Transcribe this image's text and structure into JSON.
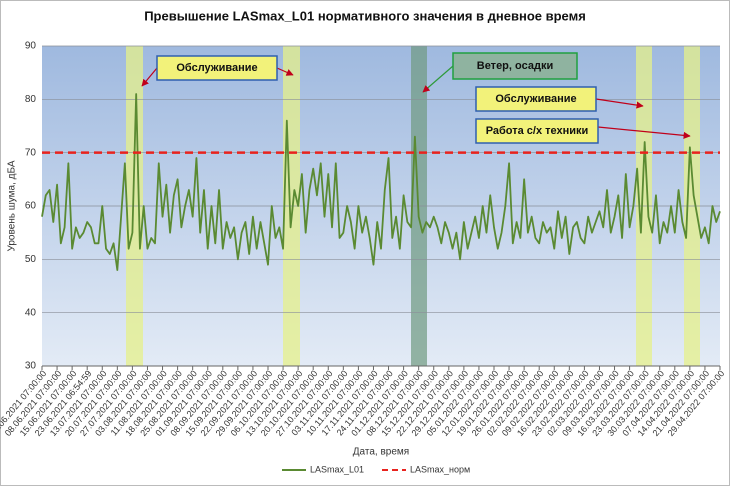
{
  "chart_data": {
    "type": "line",
    "title": "Превышение LASmax_L01 нормативного значения в дневное время",
    "x_label": "Дата, время",
    "y_label": "Уровень шума, дБА",
    "ylim": [
      30,
      90
    ],
    "yticks": [
      30,
      40,
      50,
      60,
      70,
      80,
      90
    ],
    "grid": true,
    "legend": "bottom",
    "categories": [
      "01.06.2021 07:00:00",
      null,
      null,
      null,
      "08.06.2021 07:00:00",
      null,
      null,
      null,
      "15.06.2021 07:00:00",
      null,
      null,
      null,
      "23.06.2021 06:54:59",
      null,
      null,
      null,
      "13.07.2021 07:00:00",
      null,
      null,
      null,
      "20.07.2021 07:00:00",
      null,
      null,
      null,
      "27.07.2021 07:00:00",
      null,
      null,
      null,
      "03.08.2021 07:00:00",
      null,
      null,
      null,
      "11.08.2021 07:00:00",
      null,
      null,
      null,
      "18.08.2021 07:00:00",
      null,
      null,
      null,
      "25.08.2021 07:00:00",
      null,
      null,
      null,
      "01.09.2021 07:00:00",
      null,
      null,
      null,
      "08.09.2021 07:00:00",
      null,
      null,
      null,
      "15.09.2021 07:00:00",
      null,
      null,
      null,
      "22.09.2021 07:00:00",
      null,
      null,
      null,
      "29.09.2021 07:00:00",
      null,
      null,
      null,
      "06.10.2021 07:00:00",
      null,
      null,
      null,
      "13.10.2021 07:00:00",
      null,
      null,
      null,
      "20.10.2021 07:00:00",
      null,
      null,
      null,
      "27.10.2021 07:00:00",
      null,
      null,
      null,
      "03.11.2021 07:00:00",
      null,
      null,
      null,
      "10.11.2021 07:00:00",
      null,
      null,
      null,
      "17.11.2021 07:00:00",
      null,
      null,
      null,
      "24.11.2021 07:00:00",
      null,
      null,
      null,
      "01.12.2021 07:00:00",
      null,
      null,
      null,
      "08.12.2021 07:00:00",
      null,
      null,
      null,
      "15.12.2021 07:00:00",
      null,
      null,
      null,
      "22.12.2021 07:00:00",
      null,
      null,
      null,
      "29.12.2021 07:00:00",
      null,
      null,
      null,
      "05.01.2022 07:00:00",
      null,
      null,
      null,
      "12.01.2022 07:00:00",
      null,
      null,
      null,
      "19.01.2022 07:00:00",
      null,
      null,
      null,
      "26.01.2022 07:00:00",
      null,
      null,
      null,
      "02.02.2022 07:00:00",
      null,
      null,
      null,
      "09.02.2022 07:00:00",
      null,
      null,
      null,
      "16.02.2022 07:00:00",
      null,
      null,
      null,
      "23.02.2022 07:00:00",
      null,
      null,
      null,
      "02.03.2022 07:00:00",
      null,
      null,
      null,
      "09.03.2022 07:00:00",
      null,
      null,
      null,
      "16.03.2022 07:00:00",
      null,
      null,
      null,
      "23.03.2022 07:00:00",
      null,
      null,
      null,
      "30.03.2022 07:00:00",
      null,
      null,
      null,
      "07.04.2022 07:00:00",
      null,
      null,
      null,
      "14.04.2022 07:00:00",
      null,
      null,
      null,
      "21.04.2022 07:00:00",
      null,
      null,
      null,
      "29.04.2022 07:00:00"
    ],
    "series": [
      {
        "name": "LASmax_L01",
        "color": "#5a8a32",
        "values": [
          58,
          62,
          63,
          57,
          64,
          53,
          56,
          68,
          52,
          56,
          54,
          55,
          57,
          56,
          53,
          53,
          60,
          52,
          51,
          53,
          48,
          58,
          68,
          52,
          55,
          81,
          52,
          60,
          52,
          54,
          53,
          68,
          58,
          64,
          55,
          62,
          65,
          56,
          60,
          63,
          58,
          69,
          55,
          63,
          52,
          60,
          53,
          63,
          52,
          57,
          54,
          56,
          50,
          55,
          57,
          51,
          58,
          52,
          57,
          53,
          49,
          60,
          54,
          56,
          52,
          76,
          56,
          63,
          60,
          66,
          55,
          63,
          67,
          62,
          68,
          58,
          66,
          56,
          68,
          54,
          55,
          60,
          57,
          52,
          60,
          55,
          58,
          54,
          49,
          57,
          52,
          63,
          69,
          54,
          58,
          52,
          62,
          57,
          56,
          73,
          58,
          55,
          57,
          56,
          58,
          56,
          53,
          57,
          55,
          52,
          55,
          50,
          57,
          52,
          55,
          58,
          54,
          60,
          55,
          62,
          56,
          52,
          55,
          60,
          68,
          53,
          57,
          54,
          65,
          55,
          58,
          54,
          53,
          57,
          55,
          56,
          52,
          59,
          54,
          58,
          51,
          56,
          57,
          54,
          53,
          58,
          55,
          57,
          59,
          56,
          63,
          55,
          58,
          62,
          54,
          66,
          56,
          60,
          67,
          55,
          72,
          58,
          55,
          62,
          53,
          57,
          55,
          60,
          55,
          63,
          57,
          54,
          71,
          62,
          58,
          54,
          56,
          53,
          60,
          57,
          59
        ]
      }
    ],
    "threshold": {
      "name": "LASmax_норм",
      "value": 70,
      "color": "#e8231e"
    },
    "annotations": [
      "Обслуживание",
      "Ветер, осадки",
      "Обслуживание",
      "Работа с/х техники"
    ]
  }
}
